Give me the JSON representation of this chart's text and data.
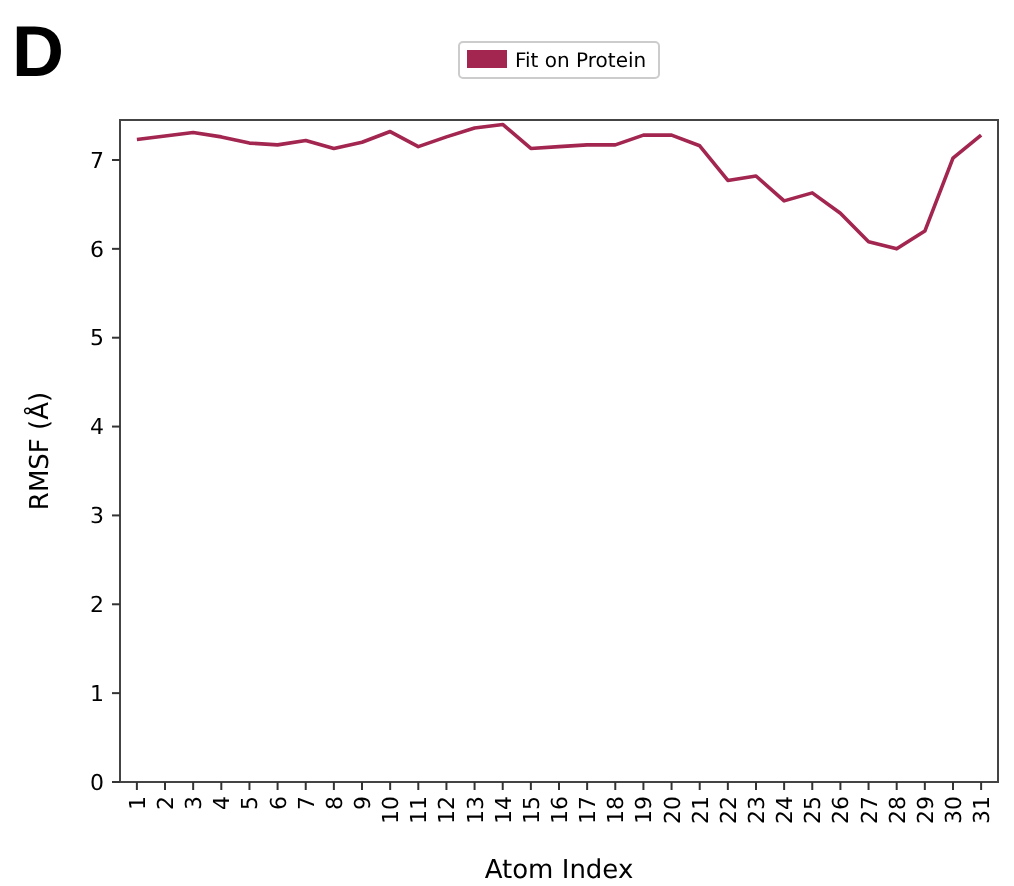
{
  "chart_data": {
    "type": "line",
    "xlabel": "Atom Index",
    "ylabel": "RMSF (Å)",
    "annotations": [
      "D"
    ],
    "categories": [
      "1",
      "2",
      "3",
      "4",
      "5",
      "6",
      "7",
      "8",
      "9",
      "10",
      "11",
      "12",
      "13",
      "14",
      "15",
      "16",
      "17",
      "18",
      "19",
      "20",
      "21",
      "22",
      "23",
      "24",
      "25",
      "26",
      "27",
      "28",
      "29",
      "30",
      "31"
    ],
    "series": [
      {
        "name": "Fit on Protein",
        "color": "#a2264f",
        "values": [
          7.23,
          7.27,
          7.31,
          7.26,
          7.19,
          7.17,
          7.22,
          7.13,
          7.2,
          7.32,
          7.15,
          7.26,
          7.36,
          7.4,
          7.13,
          7.15,
          7.17,
          7.17,
          7.28,
          7.28,
          7.16,
          6.77,
          6.82,
          6.54,
          6.63,
          6.4,
          6.08,
          6.0,
          6.2,
          7.02,
          7.28
        ]
      }
    ],
    "ylim": [
      0,
      7.45
    ],
    "yticks": [
      0,
      1,
      2,
      3,
      4,
      5,
      6,
      7
    ],
    "legend": "top",
    "grid": false,
    "marker": "none",
    "line_style": "solid"
  }
}
